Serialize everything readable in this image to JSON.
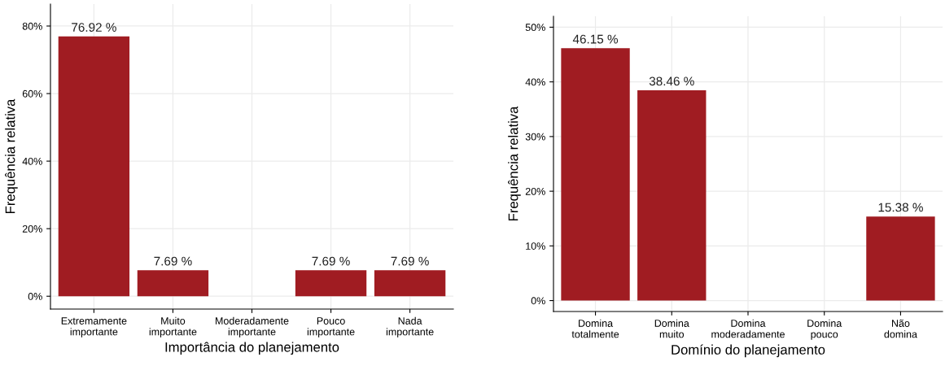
{
  "chart_data": [
    {
      "type": "bar",
      "xlabel": "Importância do planejamento",
      "ylabel": "Frequência relativa",
      "categories": [
        "Extremamente\nimportante",
        "Muito\nimportante",
        "Moderadamente\nimportante",
        "Pouco\nimportante",
        "Nada\nimportante"
      ],
      "values": [
        76.92,
        7.69,
        0,
        7.69,
        7.69
      ],
      "color": "#a01c22",
      "value_labels": [
        "76.92 %",
        "7.69 %",
        null,
        "7.69 %",
        "7.69 %"
      ],
      "ylim": [
        -3.8,
        86.5
      ],
      "yticks": [
        {
          "value": 0,
          "label": "0%"
        },
        {
          "value": 20,
          "label": "20%"
        },
        {
          "value": 40,
          "label": "40%"
        },
        {
          "value": 60,
          "label": "60%"
        },
        {
          "value": 80,
          "label": "80%"
        }
      ],
      "grid": true
    },
    {
      "type": "bar",
      "xlabel": "Domínio do planejamento",
      "ylabel": "Frequência relativa",
      "categories": [
        "Domina\ntotalmente",
        "Domina\nmuito",
        "Domina\nmoderadamente",
        "Domina\npouco",
        "Não\ndomina"
      ],
      "values": [
        46.15,
        38.46,
        0,
        0,
        15.38
      ],
      "color": "#a01c22",
      "value_labels": [
        "46.15 %",
        "38.46 %",
        null,
        null,
        "15.38 %"
      ],
      "ylim": [
        -2.0,
        52.0
      ],
      "yticks": [
        {
          "value": 0,
          "label": "0%"
        },
        {
          "value": 10,
          "label": "10%"
        },
        {
          "value": 20,
          "label": "20%"
        },
        {
          "value": 30,
          "label": "30%"
        },
        {
          "value": 40,
          "label": "40%"
        },
        {
          "value": 50,
          "label": "50%"
        }
      ],
      "grid": true
    }
  ]
}
